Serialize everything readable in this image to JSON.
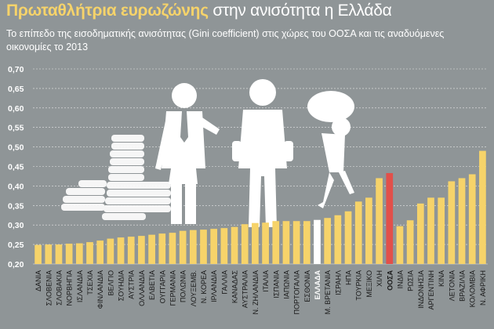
{
  "title_part1": "Πρωταθλήτρια ευρωζώνης",
  "title_part2": "στην ανισότητα η Ελλάδα",
  "subtitle": "Το επίπεδο της εισοδηματικής ανισότητας (Gini coefficient) στις χώρες του ΟΟΣΑ και τις αναδυόμενες οικονομίες το 2013",
  "colors": {
    "background": "#8f9597",
    "bar": "#f6d36a",
    "highlight_greece": "#ffffff",
    "highlight_oecd": "#e2504a",
    "title_accent": "#f6d36a",
    "grid": "#e8e8e8"
  },
  "chart_data": {
    "type": "bar",
    "ylim": [
      0.2,
      0.7
    ],
    "yticks": [
      "0,20",
      "0,25",
      "0,30",
      "0,35",
      "0,40",
      "0,45",
      "0,50",
      "0,55",
      "0,60",
      "0,65",
      "0,70"
    ],
    "grid": true,
    "categories": [
      "ΔΑΝΙΑ",
      "ΣΛΟΒΕΝΙΑ",
      "ΣΛΟΒΑΚΙΑ",
      "ΝΟΡΒΗΓΙΑ",
      "ΙΣΛΑΝΔΙΑ",
      "ΤΣΕΧΙΑ",
      "ΦΙΝΛΑΝΔΙΑ",
      "ΒΕΛΓΙΟ",
      "ΣΟΥΗΔΙΑ",
      "ΑΥΣΤΡΙΑ",
      "ΟΛΛΑΝΔΙΑ",
      "ΕΛΒΕΤΙΑ",
      "ΟΥΓΓΑΡΙΑ",
      "ΓΕΡΜΑΝΙΑ",
      "ΠΟΛΩΝΙΑ",
      "ΛΟΥΞΕΜΒ.",
      "Ν. ΚΟΡΕΑ",
      "ΙΡΛΑΝΔΙΑ",
      "ΓΑΛΛΙΑ",
      "ΚΑΝΑΔΑΣ",
      "ΑΥΣΤΡΑΛΙΑ",
      "Ν. ΖΗΛΑΝΔΙΑ",
      "ΙΤΑΛΙΑ",
      "ΙΣΠΑΝΙΑ",
      "ΙΑΠΩΝΙΑ",
      "ΠΟΡΤΟΓΑΛΙΑ",
      "ΕΣΘΟΝΙΑ",
      "ΕΛΛΑΔΑ",
      "Μ. ΒΡΕΤΑΝΙΑ",
      "ΙΣΡΑΗΛ",
      "ΗΠΑ",
      "ΤΟΥΡΚΙΑ",
      "ΜΕΞΙΚΟ",
      "ΧΙΛΗ",
      "ΟΟΣΑ",
      "ΙΝΔΙΑ",
      "ΡΩΣΙΑ",
      "ΙΝΔΟΝΗΣΙΑ",
      "ΑΡΓΕΝΤΙΝΗ",
      "ΚΙΝΑ",
      "ΛΕΤΟΝΙΑ",
      "ΒΡΑΖΙΛΙΑ",
      "ΚΟΛΟΜΒΙΑ",
      "Ν. ΑΦΡΙΚΗ"
    ],
    "values": [
      0.249,
      0.25,
      0.25,
      0.252,
      0.253,
      0.256,
      0.26,
      0.265,
      0.268,
      0.27,
      0.272,
      0.275,
      0.278,
      0.28,
      0.285,
      0.287,
      0.288,
      0.29,
      0.292,
      0.295,
      0.302,
      0.305,
      0.306,
      0.31,
      0.31,
      0.31,
      0.31,
      0.313,
      0.318,
      0.325,
      0.335,
      0.36,
      0.37,
      0.42,
      0.433,
      0.297,
      0.312,
      0.355,
      0.37,
      0.37,
      0.412,
      0.42,
      0.43,
      0.49
    ],
    "highlights": {
      "ΕΛΛΑΔΑ": "highlight_greece",
      "ΟΟΣΑ": "highlight_oecd"
    },
    "bold_labels": [
      "ΕΛΛΑΔΑ",
      "ΟΟΣΑ"
    ]
  }
}
